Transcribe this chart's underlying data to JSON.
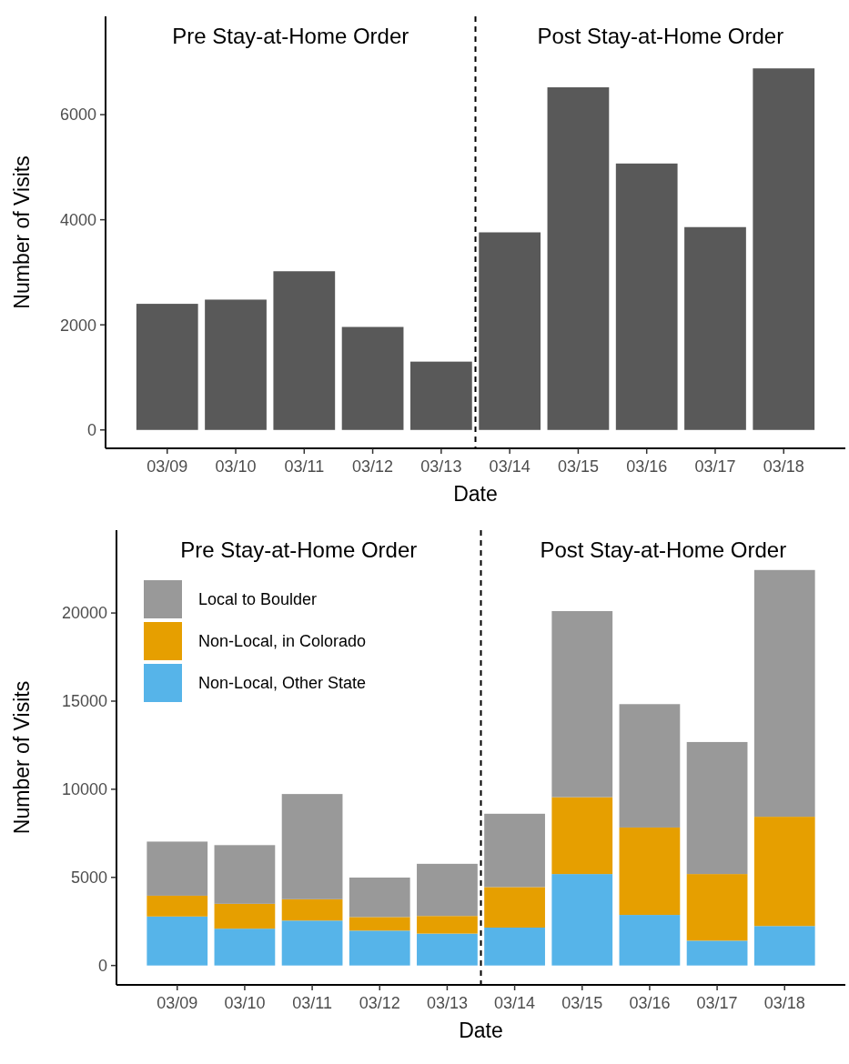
{
  "chart_data": [
    {
      "type": "bar",
      "categories": [
        "03/09",
        "03/10",
        "03/11",
        "03/12",
        "03/13",
        "03/14",
        "03/15",
        "03/16",
        "03/17",
        "03/18"
      ],
      "values": [
        2400,
        2480,
        3020,
        1960,
        1300,
        3760,
        6520,
        5070,
        3860,
        6880
      ],
      "color": "#595959",
      "xlabel": "Date",
      "ylabel": "Number of Visits",
      "ylim": [
        -350,
        7870
      ],
      "yticks": [
        0,
        2000,
        4000,
        6000
      ],
      "grid": false,
      "legend": false,
      "annotations": [
        "Pre Stay-at-Home Order",
        "Post Stay-at-Home Order"
      ]
    },
    {
      "type": "bar",
      "stacked": true,
      "categories": [
        "03/09",
        "03/10",
        "03/11",
        "03/12",
        "03/13",
        "03/14",
        "03/15",
        "03/16",
        "03/17",
        "03/18"
      ],
      "xlabel": "Date",
      "ylabel": "Number of Visits",
      "ylim": [
        -1100,
        24700
      ],
      "yticks": [
        0,
        5000,
        10000,
        15000,
        20000
      ],
      "grid": false,
      "legend": "top left",
      "series": [
        {
          "name": "Non-Local, Other State",
          "color": "#56b4e9",
          "values": [
            2780,
            2090,
            2550,
            1980,
            1810,
            2150,
            5190,
            2870,
            1410,
            2240
          ]
        },
        {
          "name": "Non-Local, in Colorado",
          "color": "#e69f00",
          "values": [
            1180,
            1410,
            1210,
            770,
            1000,
            2300,
            4360,
            4960,
            3780,
            6200
          ]
        },
        {
          "name": "Local to Boulder",
          "color": "#999999",
          "values": [
            3070,
            3330,
            5970,
            2240,
            2960,
            4160,
            10560,
            7000,
            7490,
            14000
          ]
        }
      ],
      "annotations": [
        "Pre Stay-at-Home Order",
        "Post Stay-at-Home Order"
      ]
    }
  ]
}
